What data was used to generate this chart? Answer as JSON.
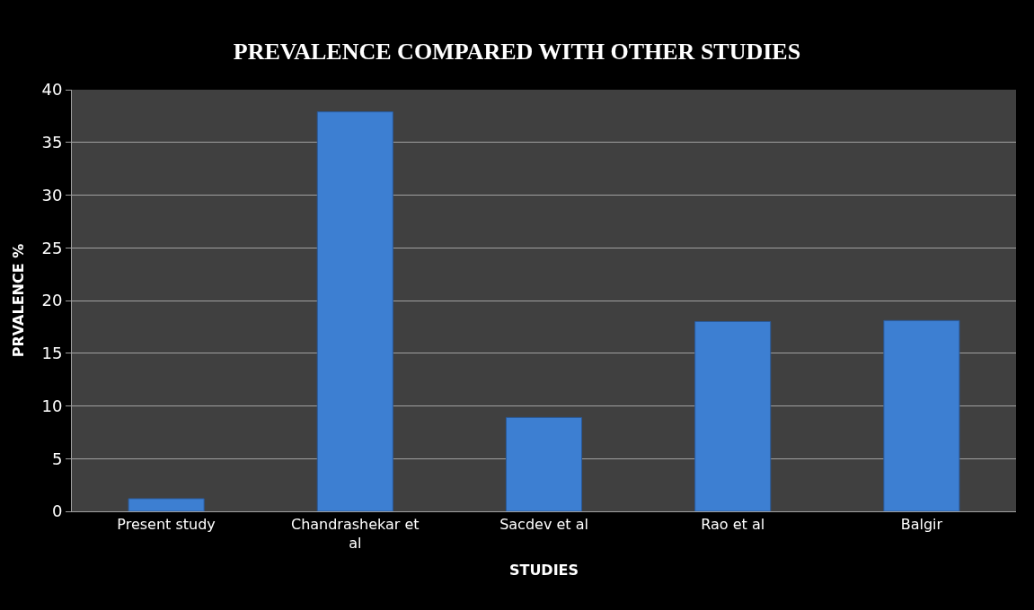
{
  "chart_data": {
    "type": "bar",
    "title": "PREVALENCE COMPARED WITH OTHER STUDIES",
    "xlabel": "STUDIES",
    "ylabel": "PRVALENCE %",
    "categories": [
      "Present study",
      "Chandrashekar et al",
      "Sacdev et al",
      "Rao et al",
      "Balgir"
    ],
    "values": [
      1.2,
      37.9,
      8.9,
      18,
      18.1
    ],
    "color": "#3d7fd2",
    "ylim": [
      0,
      40
    ],
    "yticks": [
      0,
      5,
      10,
      15,
      20,
      25,
      30,
      35,
      40
    ],
    "grid": "y",
    "legend": false
  }
}
